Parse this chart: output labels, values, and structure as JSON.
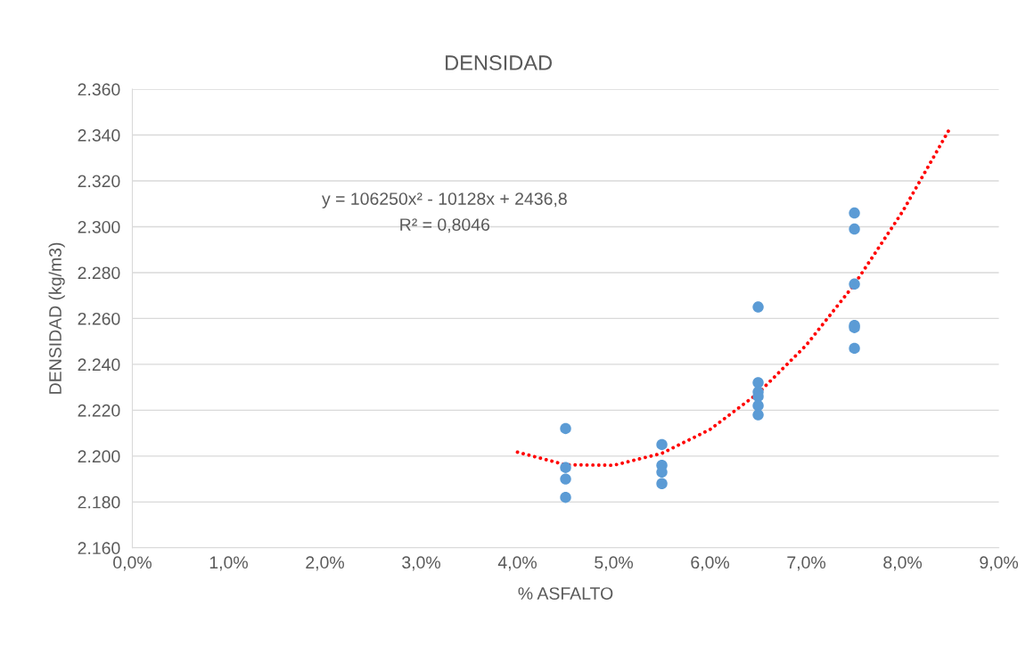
{
  "chart_data": {
    "type": "scatter",
    "title": "DENSIDAD",
    "xlabel": "% ASFALTO",
    "ylabel": "DENSIDAD (kg/m3)",
    "series": [
      {
        "color": "#5b9bd5",
        "marker": "circle",
        "x": [
          0.045,
          0.045,
          0.045,
          0.045,
          0.055,
          0.055,
          0.055,
          0.055,
          0.065,
          0.065,
          0.065,
          0.065,
          0.065,
          0.065,
          0.075,
          0.075,
          0.075,
          0.075,
          0.075,
          0.075
        ],
        "values": [
          2212,
          2195,
          2190,
          2182,
          2205,
          2196,
          2193,
          2188,
          2265,
          2232,
          2228,
          2226,
          2222,
          2218,
          2306,
          2299,
          2275,
          2257,
          2256,
          2247
        ]
      },
      {
        "type": "line",
        "color": "#ff0000",
        "line_style": "dotted",
        "x": [
          0.04,
          0.045,
          0.05,
          0.055,
          0.06,
          0.065,
          0.07,
          0.075,
          0.08,
          0.085
        ],
        "values": [
          2201.7,
          2196.2,
          2196.0,
          2201.2,
          2211.6,
          2227.4,
          2248.4,
          2274.9,
          2306.6,
          2343.5
        ]
      }
    ],
    "annotations": [
      {
        "text": "y = 106250x² - 10128x + 2436,8"
      },
      {
        "text": "R² = 0,8046"
      }
    ],
    "xlim": [
      0,
      0.09
    ],
    "xticks": [
      {
        "value": 0,
        "label": "0,0%"
      },
      {
        "value": 0.01,
        "label": "1,0%"
      },
      {
        "value": 0.02,
        "label": "2,0%"
      },
      {
        "value": 0.03,
        "label": "3,0%"
      },
      {
        "value": 0.04,
        "label": "4,0%"
      },
      {
        "value": 0.05,
        "label": "5,0%"
      },
      {
        "value": 0.06,
        "label": "6,0%"
      },
      {
        "value": 0.07,
        "label": "7,0%"
      },
      {
        "value": 0.08,
        "label": "8,0%"
      },
      {
        "value": 0.09,
        "label": "9,0%"
      }
    ],
    "ylim": [
      2160,
      2360
    ],
    "yticks": [
      {
        "value": 2160,
        "label": "2.160"
      },
      {
        "value": 2180,
        "label": "2.180"
      },
      {
        "value": 2200,
        "label": "2.200"
      },
      {
        "value": 2220,
        "label": "2.220"
      },
      {
        "value": 2240,
        "label": "2.240"
      },
      {
        "value": 2260,
        "label": "2.260"
      },
      {
        "value": 2280,
        "label": "2.280"
      },
      {
        "value": 2300,
        "label": "2.300"
      },
      {
        "value": 2320,
        "label": "2.320"
      },
      {
        "value": 2340,
        "label": "2.340"
      },
      {
        "value": 2360,
        "label": "2.360"
      }
    ],
    "grid": "y"
  }
}
